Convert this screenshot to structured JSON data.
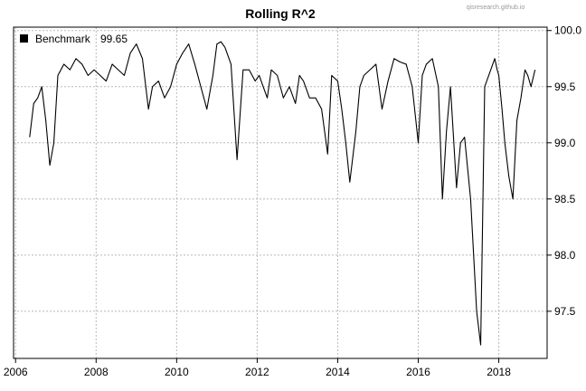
{
  "watermark": "qisresearch.github.io",
  "chart_data": {
    "type": "line",
    "title": "Rolling R^2",
    "xlabel": "",
    "ylabel": "",
    "xlim": [
      2005.95,
      2019.2
    ],
    "ylim": [
      97.08,
      100.03
    ],
    "x_ticks": [
      {
        "value": 2006,
        "label": "2006"
      },
      {
        "value": 2008,
        "label": "2008"
      },
      {
        "value": 2010,
        "label": "2010"
      },
      {
        "value": 2012,
        "label": "2012"
      },
      {
        "value": 2014,
        "label": "2014"
      },
      {
        "value": 2016,
        "label": "2016"
      },
      {
        "value": 2018,
        "label": "2018"
      }
    ],
    "y_ticks": [
      {
        "value": 97.5,
        "label": "97.5"
      },
      {
        "value": 98.0,
        "label": "98.0"
      },
      {
        "value": 98.5,
        "label": "98.5"
      },
      {
        "value": 99.0,
        "label": "99.0"
      },
      {
        "value": 99.5,
        "label": "99.5"
      },
      {
        "value": 100.0,
        "label": "100.0"
      }
    ],
    "y_axis_side": "right",
    "grid": true,
    "legend": {
      "position": "top-left",
      "label": "Benchmark",
      "value": "99.65"
    },
    "series": [
      {
        "name": "Benchmark",
        "color": "#000000",
        "x": [
          2006.35,
          2006.45,
          2006.55,
          2006.65,
          2006.75,
          2006.85,
          2006.95,
          2007.05,
          2007.2,
          2007.35,
          2007.5,
          2007.65,
          2007.8,
          2007.95,
          2008.1,
          2008.25,
          2008.4,
          2008.55,
          2008.7,
          2008.85,
          2009.0,
          2009.15,
          2009.3,
          2009.4,
          2009.55,
          2009.7,
          2009.85,
          2010.0,
          2010.15,
          2010.3,
          2010.45,
          2010.6,
          2010.75,
          2010.9,
          2011.0,
          2011.1,
          2011.2,
          2011.35,
          2011.5,
          2011.65,
          2011.8,
          2011.95,
          2012.05,
          2012.15,
          2012.25,
          2012.35,
          2012.5,
          2012.65,
          2012.8,
          2012.95,
          2013.05,
          2013.15,
          2013.3,
          2013.45,
          2013.6,
          2013.75,
          2013.85,
          2014.0,
          2014.1,
          2014.2,
          2014.3,
          2014.45,
          2014.55,
          2014.65,
          2014.8,
          2014.95,
          2015.1,
          2015.25,
          2015.4,
          2015.55,
          2015.7,
          2015.85,
          2016.0,
          2016.1,
          2016.2,
          2016.35,
          2016.5,
          2016.6,
          2016.7,
          2016.8,
          2016.95,
          2017.05,
          2017.15,
          2017.3,
          2017.45,
          2017.55,
          2017.65,
          2017.8,
          2017.9,
          2017.96,
          2018.0,
          2018.08,
          2018.15,
          2018.25,
          2018.35,
          2018.45,
          2018.55,
          2018.65,
          2018.72,
          2018.8,
          2018.9
        ],
        "values": [
          99.05,
          99.35,
          99.4,
          99.5,
          99.2,
          98.8,
          99.0,
          99.6,
          99.7,
          99.65,
          99.75,
          99.7,
          99.6,
          99.65,
          99.6,
          99.55,
          99.7,
          99.65,
          99.6,
          99.8,
          99.88,
          99.75,
          99.3,
          99.5,
          99.55,
          99.4,
          99.5,
          99.7,
          99.8,
          99.88,
          99.7,
          99.5,
          99.3,
          99.6,
          99.88,
          99.9,
          99.85,
          99.7,
          98.85,
          99.65,
          99.65,
          99.55,
          99.6,
          99.5,
          99.4,
          99.65,
          99.6,
          99.4,
          99.5,
          99.35,
          99.6,
          99.55,
          99.4,
          99.4,
          99.3,
          98.9,
          99.6,
          99.55,
          99.3,
          99.0,
          98.65,
          99.1,
          99.5,
          99.6,
          99.65,
          99.7,
          99.3,
          99.55,
          99.75,
          99.72,
          99.7,
          99.5,
          99.0,
          99.6,
          99.7,
          99.75,
          99.5,
          98.5,
          99.1,
          99.5,
          98.6,
          99.0,
          99.05,
          98.5,
          97.5,
          97.2,
          99.5,
          99.65,
          99.75,
          99.65,
          99.6,
          99.3,
          99.0,
          98.7,
          98.5,
          99.2,
          99.4,
          99.65,
          99.6,
          99.5,
          99.65
        ]
      }
    ]
  }
}
